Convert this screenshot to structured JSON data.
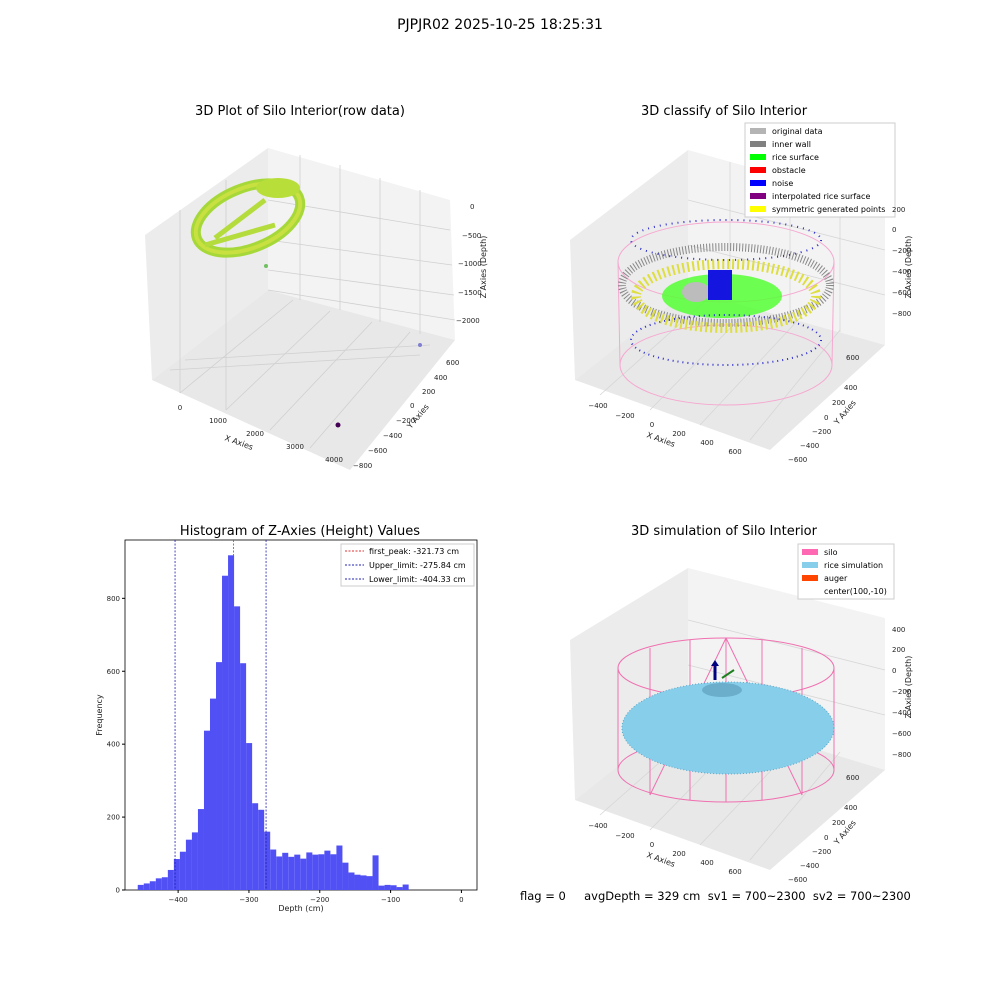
{
  "suptitle": "PJPJR02 2025-10-25 18:25:31",
  "footer": "flag = 0     avgDepth = 329 cm  sv1 = 700~2300  sv2 = 700~2300",
  "colors": {
    "hist_bar": "#5050f5",
    "peak_line": "#e03030",
    "limit_line": "#2020b0",
    "silo": "#ff69b4",
    "rice": "#87ceeb",
    "auger": "#ff4500",
    "original": "#b4b4b4",
    "inner_wall": "#808080",
    "rice_surface": "#00ff00",
    "obstacle": "#ff0000",
    "noise": "#0000ff",
    "interp": "#800080",
    "symmetric": "#ffff00"
  },
  "panels": {
    "raw": {
      "title": "3D Plot of Silo Interior(row data)",
      "x_label": "X Axies",
      "y_label": "Y Axies",
      "z_label": "Z Axies (Depth)",
      "x_ticks": [
        "0",
        "1000",
        "2000",
        "3000",
        "4000"
      ],
      "y_ticks": [
        "600",
        "400",
        "200",
        "0",
        "−200",
        "−400",
        "−600",
        "−800"
      ],
      "z_ticks": [
        "0",
        "−500",
        "−1000",
        "−1500",
        "−2000"
      ]
    },
    "classify": {
      "title": "3D classify of Silo Interior",
      "x_label": "X Axies",
      "y_label": "Y Axies",
      "z_label": "Z Axies (Depth)",
      "x_ticks": [
        "−400",
        "−200",
        "0",
        "200",
        "400",
        "600"
      ],
      "y_ticks": [
        "600",
        "400",
        "200",
        "0",
        "−200",
        "−400",
        "−600"
      ],
      "z_ticks": [
        "200",
        "0",
        "−200",
        "−400",
        "−600",
        "−800"
      ],
      "legend": [
        {
          "label": "original data",
          "color_key": "original"
        },
        {
          "label": "inner wall",
          "color_key": "inner_wall"
        },
        {
          "label": "rice surface",
          "color_key": "rice_surface"
        },
        {
          "label": "obstacle",
          "color_key": "obstacle"
        },
        {
          "label": "noise",
          "color_key": "noise"
        },
        {
          "label": "interpolated rice surface",
          "color_key": "interp"
        },
        {
          "label": "symmetric generated points",
          "color_key": "symmetric"
        }
      ]
    },
    "simulation": {
      "title": "3D simulation of Silo Interior",
      "x_label": "X Axies",
      "y_label": "Y Axies",
      "z_label": "Z Axies (Depth)",
      "x_ticks": [
        "−400",
        "−200",
        "0",
        "200",
        "400",
        "600"
      ],
      "y_ticks": [
        "600",
        "400",
        "200",
        "0",
        "−200",
        "−400",
        "−600"
      ],
      "z_ticks": [
        "400",
        "200",
        "0",
        "−200",
        "−400",
        "−600",
        "−800"
      ],
      "legend": [
        {
          "label": "silo",
          "color_key": "silo"
        },
        {
          "label": "rice simulation",
          "color_key": "rice"
        },
        {
          "label": "auger",
          "color_key": "auger"
        },
        {
          "label": "center(100,-10)",
          "color_key": ""
        }
      ]
    }
  },
  "chart_data": [
    {
      "type": "histogram",
      "title": "Histogram of Z-Axies (Height) Values",
      "xlabel": "Depth (cm)",
      "ylabel": "Frequency",
      "xlim": [
        -475,
        22
      ],
      "ylim": [
        0,
        960
      ],
      "x_ticks": [
        -400,
        -300,
        -200,
        -100,
        0
      ],
      "y_ticks": [
        0,
        200,
        400,
        600,
        800
      ],
      "bin_width": 8.5,
      "bins": [
        {
          "x": -457,
          "v": 14
        },
        {
          "x": -448.5,
          "v": 18
        },
        {
          "x": -440,
          "v": 24
        },
        {
          "x": -431.5,
          "v": 32
        },
        {
          "x": -423,
          "v": 35
        },
        {
          "x": -414.5,
          "v": 55
        },
        {
          "x": -406,
          "v": 85
        },
        {
          "x": -397.5,
          "v": 105
        },
        {
          "x": -389,
          "v": 138
        },
        {
          "x": -380.5,
          "v": 158
        },
        {
          "x": -372,
          "v": 222
        },
        {
          "x": -363.5,
          "v": 437
        },
        {
          "x": -355,
          "v": 525
        },
        {
          "x": -346.5,
          "v": 625
        },
        {
          "x": -338,
          "v": 862
        },
        {
          "x": -329.5,
          "v": 918
        },
        {
          "x": -321,
          "v": 778
        },
        {
          "x": -312.5,
          "v": 622
        },
        {
          "x": -304,
          "v": 403
        },
        {
          "x": -295.5,
          "v": 238
        },
        {
          "x": -287,
          "v": 220
        },
        {
          "x": -278.5,
          "v": 160
        },
        {
          "x": -270,
          "v": 111
        },
        {
          "x": -261.5,
          "v": 92
        },
        {
          "x": -253,
          "v": 102
        },
        {
          "x": -244.5,
          "v": 91
        },
        {
          "x": -236,
          "v": 97
        },
        {
          "x": -227.5,
          "v": 86
        },
        {
          "x": -219,
          "v": 103
        },
        {
          "x": -210.5,
          "v": 97
        },
        {
          "x": -202,
          "v": 98
        },
        {
          "x": -193.5,
          "v": 108
        },
        {
          "x": -185,
          "v": 98
        },
        {
          "x": -176.5,
          "v": 122
        },
        {
          "x": -168,
          "v": 75
        },
        {
          "x": -159.5,
          "v": 48
        },
        {
          "x": -151,
          "v": 42
        },
        {
          "x": -142.5,
          "v": 40
        },
        {
          "x": -134,
          "v": 38
        },
        {
          "x": -125.5,
          "v": 95
        },
        {
          "x": -117,
          "v": 12
        },
        {
          "x": -108.5,
          "v": 14
        },
        {
          "x": -100,
          "v": 13
        },
        {
          "x": -91.5,
          "v": 8
        },
        {
          "x": -83,
          "v": 15
        }
      ],
      "vlines": [
        {
          "x": -321.73,
          "label": "first_peak: -321.73 cm",
          "color_key": "peak_line"
        },
        {
          "x": -275.84,
          "label": "Upper_limit: -275.84 cm",
          "color_key": "limit_line"
        },
        {
          "x": -404.33,
          "label": "Lower_limit: -404.33 cm",
          "color_key": "limit_line"
        }
      ]
    }
  ]
}
